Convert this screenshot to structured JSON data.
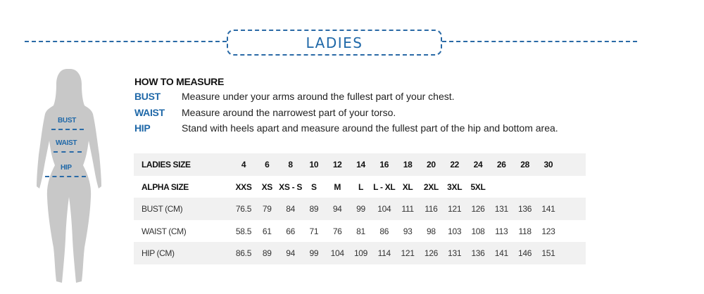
{
  "header": {
    "title": "LADIES"
  },
  "figure": {
    "labels": [
      "BUST",
      "WAIST",
      "HIP"
    ],
    "accent": "#1f68a8"
  },
  "how_to_measure": {
    "title": "HOW TO MEASURE",
    "items": [
      {
        "label": "BUST",
        "text": "Measure under your arms around the fullest part of your chest."
      },
      {
        "label": "WAIST",
        "text": "Measure around the narrowest part of your torso."
      },
      {
        "label": "HIP",
        "text": "Stand with heels apart and measure around the fullest part of the hip and bottom area."
      }
    ]
  },
  "table": {
    "rows": [
      {
        "label": "LADIES SIZE",
        "values": [
          "4",
          "6",
          "8",
          "10",
          "12",
          "14",
          "16",
          "18",
          "20",
          "22",
          "24",
          "26",
          "28",
          "30"
        ]
      },
      {
        "label": "ALPHA SIZE",
        "values": [
          "XXS",
          "XS",
          "XS - S",
          "S",
          "M",
          "L",
          "L - XL",
          "XL",
          "2XL",
          "3XL",
          "5XL",
          "",
          "",
          ""
        ]
      },
      {
        "label": "BUST (CM)",
        "values": [
          "76.5",
          "79",
          "84",
          "89",
          "94",
          "99",
          "104",
          "111",
          "116",
          "121",
          "126",
          "131",
          "136",
          "141"
        ]
      },
      {
        "label": "WAIST (CM)",
        "values": [
          "58.5",
          "61",
          "66",
          "71",
          "76",
          "81",
          "86",
          "93",
          "98",
          "103",
          "108",
          "113",
          "118",
          "123"
        ]
      },
      {
        "label": "HIP (CM)",
        "values": [
          "86.5",
          "89",
          "94",
          "99",
          "104",
          "109",
          "114",
          "121",
          "126",
          "131",
          "136",
          "141",
          "146",
          "151"
        ]
      }
    ]
  }
}
